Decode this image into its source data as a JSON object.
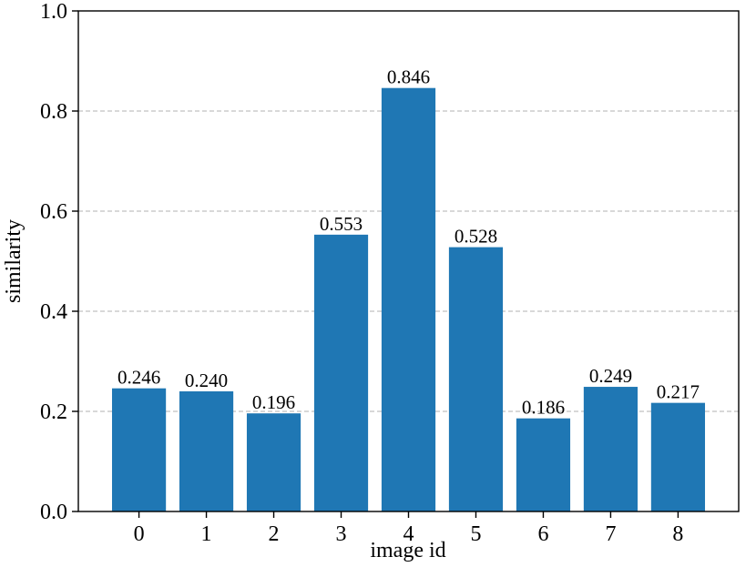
{
  "chart_data": {
    "type": "bar",
    "categories": [
      "0",
      "1",
      "2",
      "3",
      "4",
      "5",
      "6",
      "7",
      "8"
    ],
    "values": [
      0.246,
      0.24,
      0.196,
      0.553,
      0.846,
      0.528,
      0.186,
      0.249,
      0.217
    ],
    "value_labels": [
      "0.246",
      "0.240",
      "0.196",
      "0.553",
      "0.846",
      "0.528",
      "0.186",
      "0.249",
      "0.217"
    ],
    "xlabel": "image id",
    "ylabel": "similarity",
    "ylim": [
      0,
      1.0
    ],
    "yticks": [
      0.0,
      0.2,
      0.4,
      0.6,
      0.8,
      1.0
    ],
    "ytick_labels": [
      "0.0",
      "0.2",
      "0.4",
      "0.6",
      "0.8",
      "1.0"
    ],
    "grid": "y-dashed",
    "bar_color": "#1f77b4",
    "grid_color": "#b0b0b0"
  }
}
